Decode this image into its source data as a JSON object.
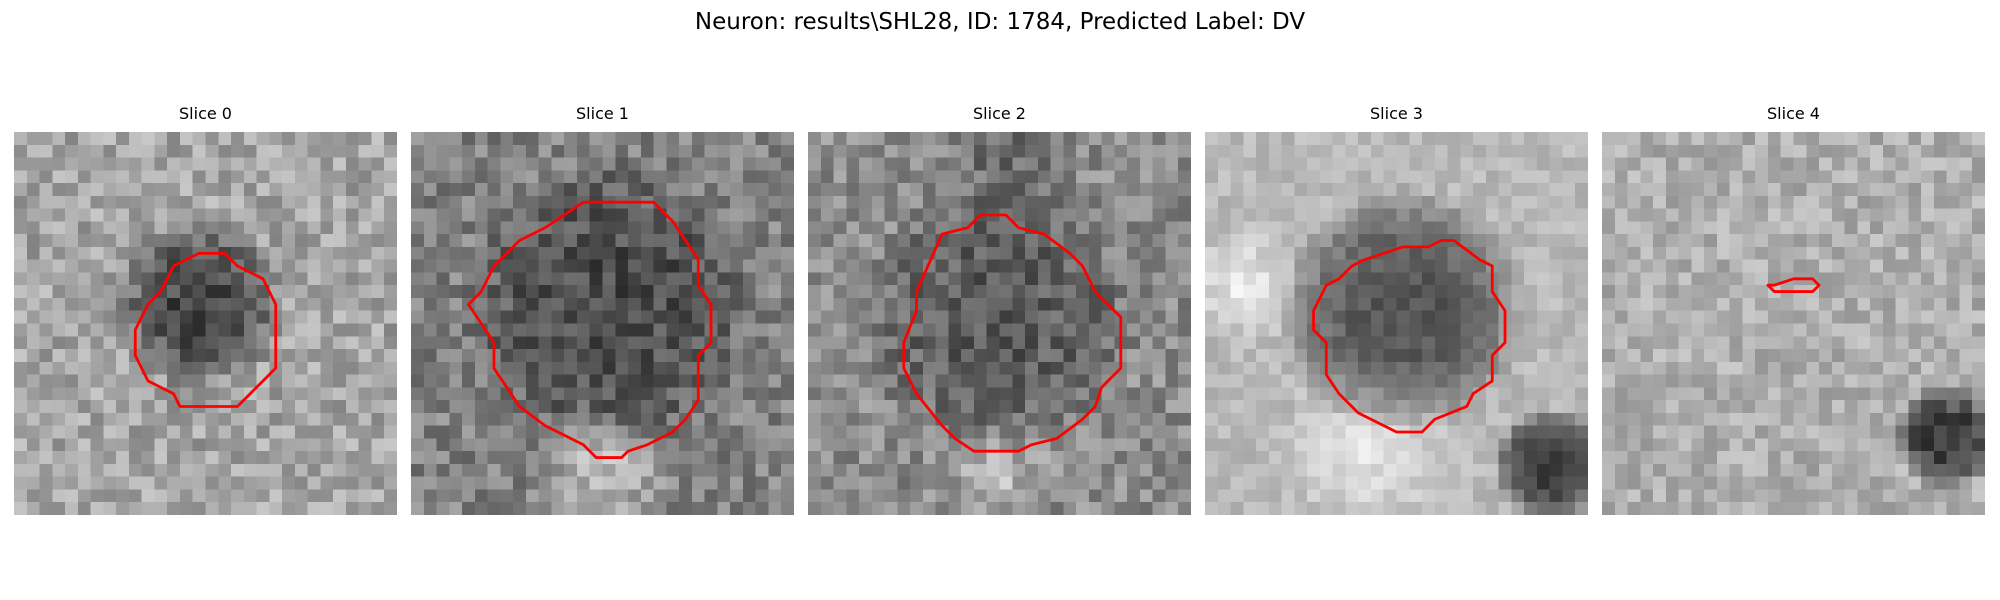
{
  "figure": {
    "title": "Neuron: results\\SHL28, ID: 1784, Predicted Label: DV"
  },
  "panels": [
    {
      "title": "Slice 0"
    },
    {
      "title": "Slice 1"
    },
    {
      "title": "Slice 2"
    },
    {
      "title": "Slice 3"
    },
    {
      "title": "Slice 4"
    }
  ],
  "colors": {
    "contour": "#ff0000",
    "background": "#ffffff"
  }
}
